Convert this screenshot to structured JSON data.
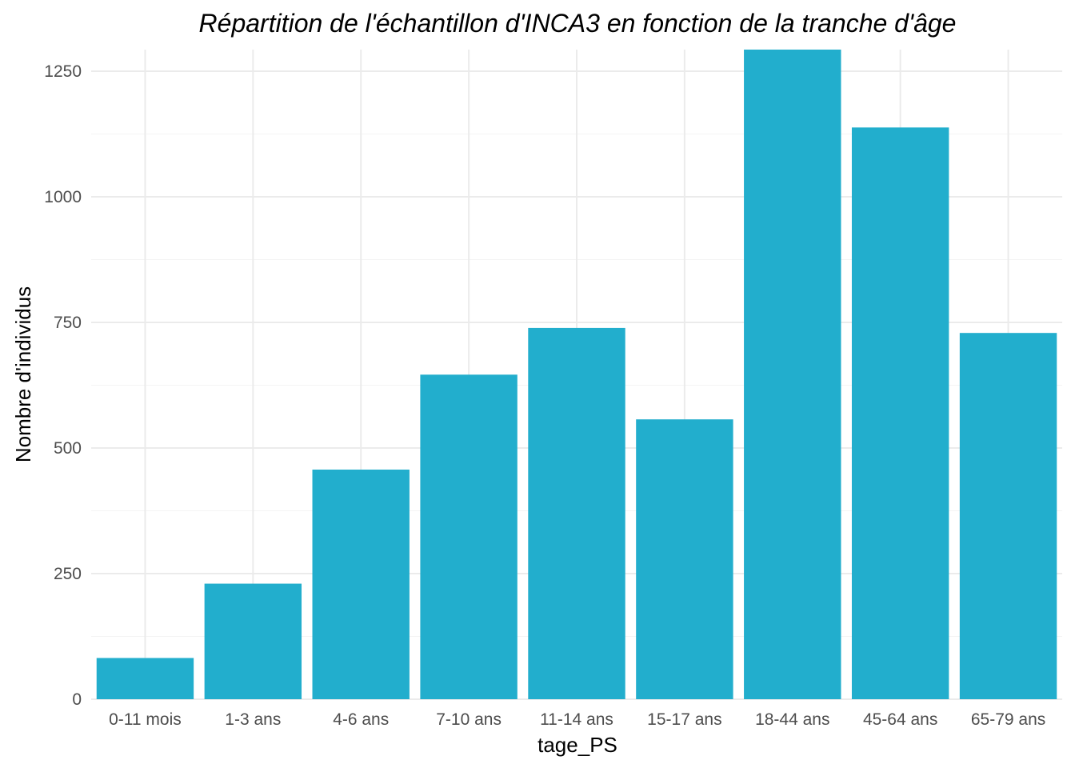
{
  "chart_data": {
    "type": "bar",
    "title": "Répartition de l'échantillon d'INCA3 en fonction de la tranche d'âge",
    "xlabel": "tage_PS",
    "ylabel": "Nombre d'individus",
    "categories": [
      "0-11 mois",
      "1-3 ans",
      "4-6 ans",
      "7-10 ans",
      "11-14 ans",
      "15-17 ans",
      "18-44 ans",
      "45-64 ans",
      "65-79 ans"
    ],
    "values": [
      82,
      230,
      457,
      646,
      739,
      557,
      1293,
      1138,
      729
    ],
    "ylim": [
      0,
      1293
    ],
    "yticks": [
      0,
      250,
      500,
      750,
      1000,
      1250
    ],
    "grid": true,
    "legend": "none",
    "bar_color": "#22aecd"
  }
}
